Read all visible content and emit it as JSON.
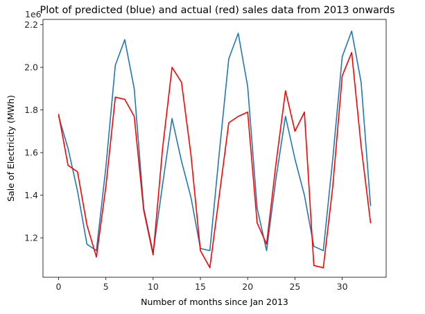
{
  "chart_data": {
    "type": "line",
    "title": "Plot of predicted (blue) and actual (red) sales data from 2013 onwards",
    "xlabel": "Number of months since Jan 2013",
    "ylabel": "Sale of Electricity (MWh)",
    "offset_text": "1e6",
    "xlim": [
      -1.65,
      34.65
    ],
    "ylim": [
      1.015,
      2.225
    ],
    "xticks": [
      0,
      5,
      10,
      15,
      20,
      25,
      30
    ],
    "yticks": [
      1.2,
      1.4,
      1.6,
      1.8,
      2.0,
      2.2
    ],
    "ytick_labels": [
      "1.2",
      "1.4",
      "1.6",
      "1.8",
      "2.0",
      "2.2"
    ],
    "grid": false,
    "series": [
      {
        "color": "#1f77b4",
        "x": [
          0,
          1,
          2,
          3,
          4,
          5,
          6,
          7,
          8,
          9,
          10,
          11,
          12,
          13,
          14,
          15,
          16,
          17,
          18,
          19,
          20,
          21,
          22,
          23,
          24,
          25,
          26,
          27,
          28,
          29,
          30,
          31,
          32,
          33
        ],
        "values": [
          1.77,
          1.62,
          1.42,
          1.17,
          1.14,
          1.53,
          2.01,
          2.13,
          1.9,
          1.34,
          1.13,
          1.45,
          1.76,
          1.56,
          1.39,
          1.15,
          1.14,
          1.6,
          2.04,
          2.16,
          1.91,
          1.34,
          1.14,
          1.48,
          1.77,
          1.57,
          1.4,
          1.16,
          1.14,
          1.57,
          2.05,
          2.17,
          1.93,
          1.35
        ]
      },
      {
        "color": "#ff0000",
        "x": [
          0,
          1,
          2,
          3,
          4,
          5,
          6,
          7,
          8,
          9,
          10,
          11,
          12,
          13,
          14,
          15,
          16,
          17,
          18,
          19,
          20,
          21,
          22,
          23,
          24,
          25,
          26,
          27,
          28,
          29,
          30,
          31,
          32,
          33
        ],
        "values": [
          1.78,
          1.54,
          1.51,
          1.26,
          1.11,
          1.44,
          1.86,
          1.85,
          1.77,
          1.33,
          1.12,
          1.62,
          2.0,
          1.93,
          1.59,
          1.14,
          1.06,
          1.4,
          1.74,
          1.77,
          1.79,
          1.27,
          1.17,
          1.55,
          1.89,
          1.7,
          1.79,
          1.07,
          1.06,
          1.44,
          1.96,
          2.07,
          1.63,
          1.27
        ]
      }
    ]
  }
}
